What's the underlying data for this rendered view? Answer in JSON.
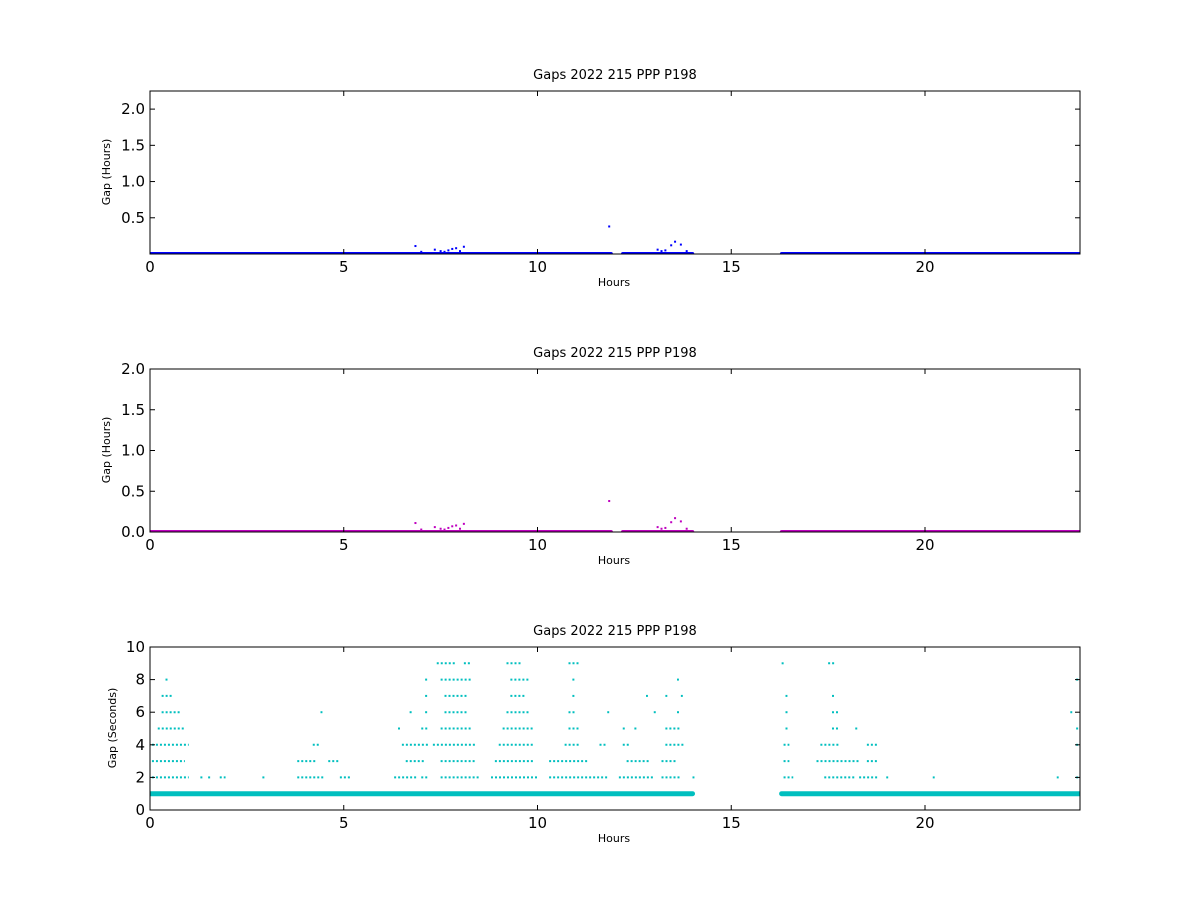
{
  "chart_data": [
    {
      "type": "scatter",
      "title": "Gaps 2022 215 PPP  P198",
      "xlabel": "Hours",
      "ylabel": "Gap (Hours)",
      "xlim": [
        0,
        24
      ],
      "ylim": [
        0.0,
        2.25
      ],
      "xticks": [
        0,
        5,
        10,
        15,
        20
      ],
      "yticks": [
        0.5,
        1.0,
        1.5,
        2.0
      ],
      "xtick_labels": [
        "0",
        "5",
        "10",
        "15",
        "20"
      ],
      "ytick_labels": [
        "0.5",
        "1.0",
        "1.5",
        "2.0"
      ],
      "color": "#0000ff",
      "grid": false,
      "baseline_segments": [
        [
          0.0,
          11.9
        ],
        [
          12.2,
          14.0
        ],
        [
          16.3,
          24.0
        ]
      ],
      "baseline_value": 0.003,
      "series": [
        {
          "x": [
            6.85,
            7.0,
            7.35,
            7.5,
            7.6,
            7.7,
            7.8,
            7.9,
            8.0,
            8.1,
            11.85,
            13.1,
            13.2,
            13.3,
            13.45,
            13.55,
            13.7,
            13.85
          ],
          "y": [
            0.11,
            0.03,
            0.06,
            0.04,
            0.03,
            0.05,
            0.07,
            0.08,
            0.04,
            0.1,
            0.38,
            0.06,
            0.04,
            0.05,
            0.12,
            0.17,
            0.13,
            0.04
          ]
        }
      ]
    },
    {
      "type": "scatter",
      "title": "Gaps 2022 215 PPP  P198",
      "xlabel": "Hours",
      "ylabel": "Gap (Hours)",
      "xlim": [
        0,
        24
      ],
      "ylim": [
        0.0,
        2.0
      ],
      "xticks": [
        0,
        5,
        10,
        15,
        20
      ],
      "yticks": [
        0.0,
        0.5,
        1.0,
        1.5,
        2.0
      ],
      "xtick_labels": [
        "0",
        "5",
        "10",
        "15",
        "20"
      ],
      "ytick_labels": [
        "0.0",
        "0.5",
        "1.0",
        "1.5",
        "2.0"
      ],
      "color": "#bf00bf",
      "grid": false,
      "baseline_segments": [
        [
          0.0,
          11.9
        ],
        [
          12.2,
          14.0
        ],
        [
          16.3,
          24.0
        ]
      ],
      "baseline_value": 0.003,
      "series": [
        {
          "x": [
            6.85,
            7.0,
            7.35,
            7.5,
            7.6,
            7.7,
            7.8,
            7.9,
            8.0,
            8.1,
            11.85,
            13.1,
            13.2,
            13.3,
            13.45,
            13.55,
            13.7,
            13.85
          ],
          "y": [
            0.11,
            0.03,
            0.06,
            0.04,
            0.03,
            0.05,
            0.07,
            0.08,
            0.04,
            0.1,
            0.38,
            0.06,
            0.04,
            0.05,
            0.12,
            0.17,
            0.13,
            0.04
          ]
        }
      ]
    },
    {
      "type": "scatter",
      "title": "Gaps 2022 215 PPP  P198",
      "xlabel": "Hours",
      "ylabel": "Gap (Seconds)",
      "xlim": [
        0,
        24
      ],
      "ylim": [
        0,
        10
      ],
      "xticks": [
        0,
        5,
        10,
        15,
        20
      ],
      "yticks": [
        0,
        2,
        4,
        6,
        8,
        10
      ],
      "xtick_labels": [
        "0",
        "5",
        "10",
        "15",
        "20"
      ],
      "ytick_labels": [
        "0",
        "2",
        "4",
        "6",
        "8",
        "10"
      ],
      "color": "#00bfbf",
      "grid": false,
      "baseline_segments": [
        [
          0.0,
          14.0
        ],
        [
          16.3,
          24.0
        ]
      ],
      "baseline_value": 1,
      "level_segments": [
        {
          "y": 2,
          "ranges": [
            [
              0.05,
              1.0
            ],
            [
              1.3,
              1.4
            ],
            [
              1.5,
              1.6
            ],
            [
              1.8,
              1.95
            ],
            [
              2.9,
              3.0
            ],
            [
              3.8,
              4.5
            ],
            [
              4.9,
              5.2
            ],
            [
              6.3,
              6.9
            ],
            [
              7.0,
              7.2
            ],
            [
              7.5,
              8.5
            ],
            [
              8.8,
              10.0
            ],
            [
              10.3,
              11.8
            ],
            [
              12.1,
              13.0
            ],
            [
              13.2,
              13.7
            ],
            [
              14.0,
              14.05
            ],
            [
              16.35,
              16.6
            ],
            [
              17.4,
              18.2
            ],
            [
              18.3,
              18.8
            ],
            [
              19.0,
              19.05
            ],
            [
              20.2,
              20.25
            ],
            [
              23.4,
              23.45
            ],
            [
              23.9,
              24.0
            ]
          ]
        },
        {
          "y": 3,
          "ranges": [
            [
              0.05,
              0.9
            ],
            [
              3.8,
              4.3
            ],
            [
              4.6,
              4.9
            ],
            [
              6.6,
              7.1
            ],
            [
              7.5,
              8.4
            ],
            [
              8.9,
              9.9
            ],
            [
              10.3,
              11.3
            ],
            [
              12.3,
              12.9
            ],
            [
              13.2,
              13.6
            ],
            [
              16.35,
              16.5
            ],
            [
              17.2,
              18.3
            ],
            [
              18.5,
              18.8
            ]
          ]
        },
        {
          "y": 4,
          "ranges": [
            [
              0.05,
              1.0
            ],
            [
              4.2,
              4.4
            ],
            [
              6.5,
              7.2
            ],
            [
              7.3,
              8.4
            ],
            [
              9.0,
              9.9
            ],
            [
              10.7,
              11.1
            ],
            [
              11.6,
              11.8
            ],
            [
              12.2,
              12.4
            ],
            [
              13.3,
              13.8
            ],
            [
              16.35,
              16.5
            ],
            [
              17.3,
              17.8
            ],
            [
              18.5,
              18.8
            ],
            [
              23.9,
              24.0
            ]
          ]
        },
        {
          "y": 5,
          "ranges": [
            [
              0.2,
              0.9
            ],
            [
              6.4,
              6.5
            ],
            [
              7.0,
              7.2
            ],
            [
              7.5,
              8.3
            ],
            [
              9.1,
              9.9
            ],
            [
              10.8,
              11.1
            ],
            [
              12.2,
              12.3
            ],
            [
              12.5,
              12.6
            ],
            [
              13.3,
              13.7
            ],
            [
              16.4,
              16.5
            ],
            [
              17.6,
              17.8
            ],
            [
              18.2,
              18.3
            ],
            [
              23.9,
              24.0
            ]
          ]
        },
        {
          "y": 6,
          "ranges": [
            [
              0.3,
              0.8
            ],
            [
              4.4,
              4.45
            ],
            [
              6.7,
              6.8
            ],
            [
              7.1,
              7.2
            ],
            [
              7.6,
              8.2
            ],
            [
              9.2,
              9.8
            ],
            [
              10.8,
              11.0
            ],
            [
              11.8,
              11.85
            ],
            [
              13.0,
              13.1
            ],
            [
              13.6,
              13.7
            ],
            [
              16.4,
              16.5
            ],
            [
              17.6,
              17.8
            ],
            [
              23.75,
              23.8
            ]
          ]
        },
        {
          "y": 7,
          "ranges": [
            [
              0.3,
              0.6
            ],
            [
              7.1,
              7.2
            ],
            [
              7.6,
              8.2
            ],
            [
              9.3,
              9.7
            ],
            [
              10.9,
              11.0
            ],
            [
              12.8,
              12.85
            ],
            [
              13.3,
              13.35
            ],
            [
              13.7,
              13.75
            ],
            [
              16.4,
              16.45
            ],
            [
              17.6,
              17.7
            ]
          ]
        },
        {
          "y": 8,
          "ranges": [
            [
              0.4,
              0.5
            ],
            [
              7.1,
              7.2
            ],
            [
              7.5,
              8.3
            ],
            [
              9.3,
              9.8
            ],
            [
              10.9,
              11.0
            ],
            [
              13.6,
              13.65
            ],
            [
              23.9,
              24.0
            ]
          ]
        },
        {
          "y": 9,
          "ranges": [
            [
              7.4,
              7.9
            ],
            [
              8.1,
              8.3
            ],
            [
              9.2,
              9.6
            ],
            [
              10.8,
              11.1
            ],
            [
              16.3,
              16.4
            ],
            [
              17.5,
              17.7
            ]
          ]
        }
      ]
    }
  ]
}
